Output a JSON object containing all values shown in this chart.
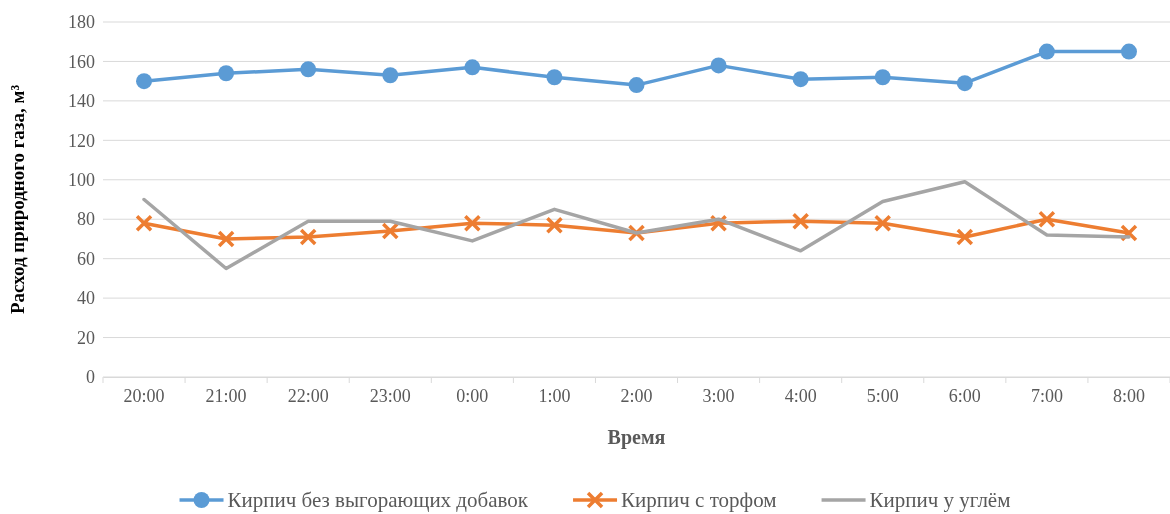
{
  "chart_data": {
    "type": "line",
    "xlabel": "Время",
    "ylabel": "Расход природного газа, м³",
    "categories": [
      "20:00",
      "21:00",
      "22:00",
      "23:00",
      "0:00",
      "1:00",
      "2:00",
      "3:00",
      "4:00",
      "5:00",
      "6:00",
      "7:00",
      "8:00"
    ],
    "ylim": [
      0,
      180
    ],
    "yticks": [
      0,
      20,
      40,
      60,
      80,
      100,
      120,
      140,
      160,
      180
    ],
    "grid": "y",
    "legend": "bottom",
    "series": [
      {
        "name": "Кирпич без выгорающих добавок",
        "color": "#5b9bd5",
        "marker": "circle",
        "values": [
          150,
          154,
          156,
          153,
          157,
          152,
          148,
          158,
          151,
          152,
          149,
          165,
          165
        ]
      },
      {
        "name": "Кирпич с торфом",
        "color": "#ed7d31",
        "marker": "cross",
        "values": [
          78,
          70,
          71,
          74,
          78,
          77,
          73,
          78,
          79,
          78,
          71,
          80,
          73
        ]
      },
      {
        "name": "Кирпич у углём",
        "color": "#a5a5a5",
        "marker": "none",
        "values": [
          90,
          55,
          79,
          79,
          69,
          85,
          73,
          80,
          64,
          89,
          99,
          72,
          71
        ]
      }
    ]
  }
}
